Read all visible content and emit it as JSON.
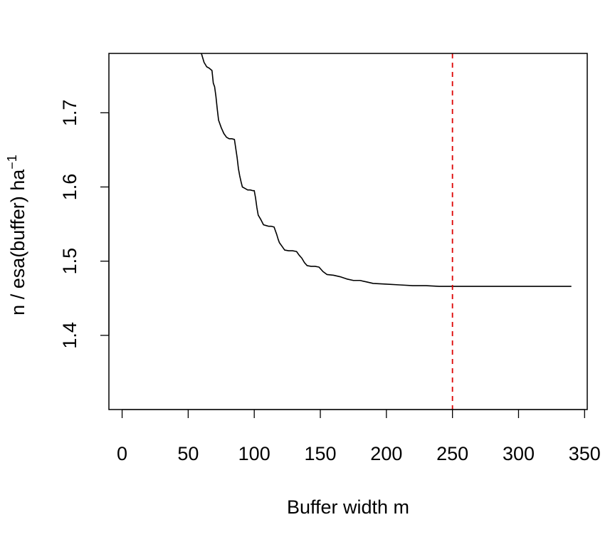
{
  "chart_data": {
    "type": "line",
    "xlabel": "Buffer width  m",
    "ylabel": "n / esa(buffer)   ha",
    "ylabel_superscript": "−1",
    "xlim": [
      -10,
      352
    ],
    "ylim": [
      1.3,
      1.78
    ],
    "x_ticks": [
      0,
      50,
      100,
      150,
      200,
      250,
      300,
      350
    ],
    "x_tick_labels": [
      "0",
      "50",
      "100",
      "150",
      "200",
      "250",
      "300",
      "350"
    ],
    "y_ticks": [
      1.4,
      1.5,
      1.6,
      1.7
    ],
    "y_tick_labels": [
      "1.4",
      "1.5",
      "1.6",
      "1.7"
    ],
    "grid": false,
    "colors": {
      "series": "#000000",
      "reference_line": "#dd0000"
    },
    "reference_line": {
      "orientation": "vertical",
      "x": 250,
      "style": "dashed"
    },
    "series": [
      {
        "x": [
          55,
          60,
          62,
          64,
          66,
          68,
          69,
          70,
          71,
          72,
          73,
          75,
          77,
          79,
          81,
          83,
          85,
          86,
          87,
          88,
          89,
          90,
          91,
          93,
          95,
          97,
          99,
          100,
          101,
          102,
          103,
          105,
          107,
          109,
          111,
          113,
          115,
          116,
          117,
          118,
          119,
          121,
          123,
          126,
          129,
          132,
          134,
          136,
          138,
          140,
          143,
          146,
          149,
          152,
          155,
          160,
          165,
          170,
          175,
          180,
          185,
          190,
          200,
          210,
          220,
          230,
          240,
          250,
          260,
          280,
          300,
          320,
          340
        ],
        "y": [
          1.805,
          1.78,
          1.768,
          1.762,
          1.76,
          1.757,
          1.74,
          1.735,
          1.722,
          1.705,
          1.69,
          1.68,
          1.672,
          1.667,
          1.665,
          1.665,
          1.664,
          1.652,
          1.64,
          1.625,
          1.615,
          1.607,
          1.6,
          1.598,
          1.596,
          1.596,
          1.595,
          1.595,
          1.585,
          1.572,
          1.562,
          1.556,
          1.549,
          1.548,
          1.547,
          1.547,
          1.546,
          1.541,
          1.536,
          1.53,
          1.525,
          1.52,
          1.515,
          1.514,
          1.514,
          1.513,
          1.508,
          1.504,
          1.498,
          1.494,
          1.493,
          1.493,
          1.492,
          1.486,
          1.482,
          1.481,
          1.479,
          1.476,
          1.474,
          1.474,
          1.472,
          1.47,
          1.469,
          1.468,
          1.467,
          1.467,
          1.466,
          1.466,
          1.466,
          1.466,
          1.466,
          1.466,
          1.466
        ]
      }
    ]
  }
}
